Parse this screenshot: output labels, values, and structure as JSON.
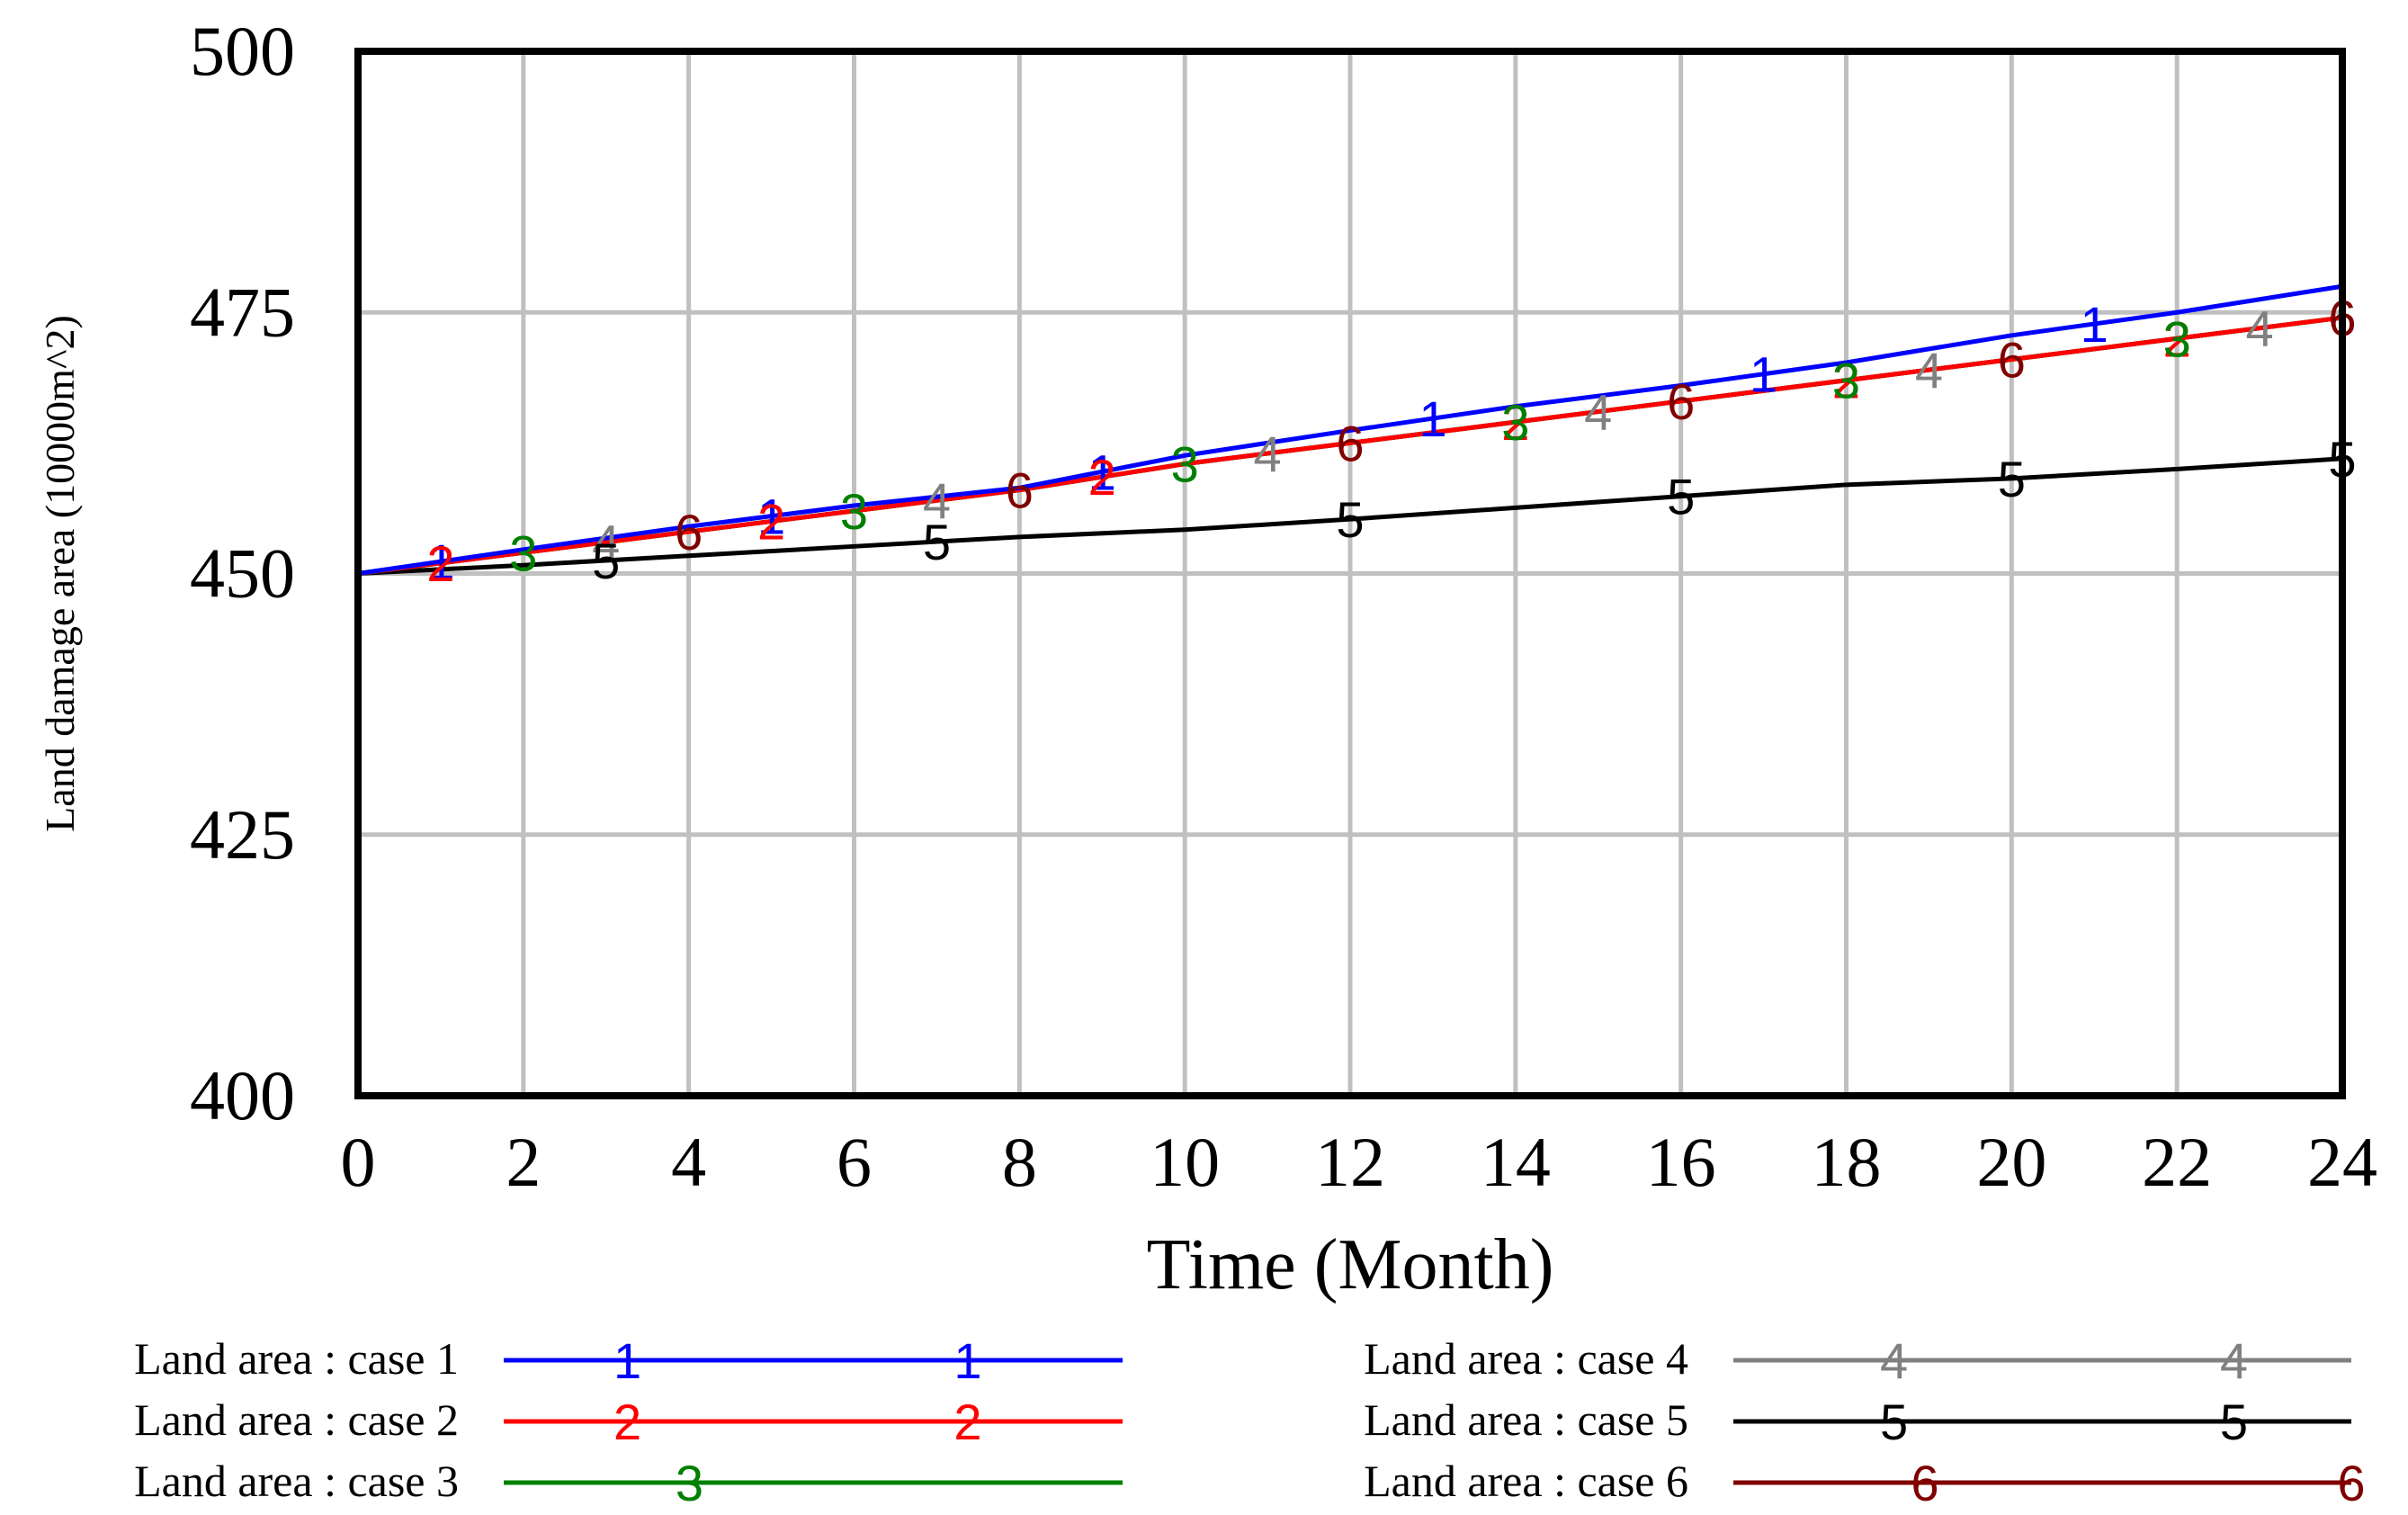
{
  "chart_data": {
    "type": "line",
    "title": "",
    "xlabel": "Time (Month)",
    "ylabel": "Land damage area (10000m^2)",
    "xlim": [
      0,
      24
    ],
    "ylim": [
      400,
      500
    ],
    "xticks": [
      0,
      2,
      4,
      6,
      8,
      10,
      12,
      14,
      16,
      18,
      20,
      22,
      24
    ],
    "yticks": [
      400,
      425,
      450,
      475,
      500
    ],
    "grid": true,
    "legend_position": "bottom",
    "series": [
      {
        "name": "Land area : case 1",
        "marker": "1",
        "color": "#0000ff",
        "x": [
          0,
          2,
          4,
          6,
          8,
          10,
          12,
          14,
          16,
          18,
          20,
          22,
          24
        ],
        "y": [
          450,
          452.3,
          454.5,
          456.5,
          458.2,
          461.3,
          463.7,
          466.0,
          468.0,
          470.2,
          472.8,
          475.0,
          477.5
        ],
        "marker_x": [
          1,
          5,
          9,
          13,
          17,
          21
        ]
      },
      {
        "name": "Land area : case 2",
        "marker": "2",
        "color": "#ff0000",
        "x": [
          0,
          2,
          4,
          6,
          8,
          10,
          12,
          14,
          16,
          18,
          20,
          22,
          24
        ],
        "y": [
          450,
          452.0,
          454.0,
          456.0,
          458.0,
          460.5,
          462.5,
          464.5,
          466.5,
          468.5,
          470.5,
          472.5,
          474.5
        ],
        "marker_x": [
          1,
          5,
          9,
          14,
          18,
          22
        ]
      },
      {
        "name": "Land area : case 3",
        "marker": "3",
        "color": "#008000",
        "x": [
          0,
          2,
          4,
          6,
          8,
          10,
          12,
          14,
          16,
          18,
          20,
          22,
          24
        ],
        "y": [
          450,
          452.0,
          454.0,
          456.0,
          458.0,
          460.5,
          462.5,
          464.5,
          466.5,
          468.5,
          470.5,
          472.5,
          474.5
        ],
        "marker_x": [
          2,
          6,
          10,
          14,
          18,
          22
        ]
      },
      {
        "name": "Land area : case 4",
        "marker": "4",
        "color": "#808080",
        "x": [
          0,
          2,
          4,
          6,
          8,
          10,
          12,
          14,
          16,
          18,
          20,
          22,
          24
        ],
        "y": [
          450,
          452.0,
          454.0,
          456.0,
          458.0,
          460.5,
          462.5,
          464.5,
          466.5,
          468.5,
          470.5,
          472.5,
          474.5
        ],
        "marker_x": [
          3,
          7,
          11,
          15,
          19,
          23
        ]
      },
      {
        "name": "Land area : case 5",
        "marker": "5",
        "color": "#000000",
        "x": [
          0,
          2,
          4,
          6,
          8,
          10,
          12,
          14,
          16,
          18,
          20,
          22,
          24
        ],
        "y": [
          450,
          450.8,
          451.7,
          452.6,
          453.5,
          454.2,
          455.2,
          456.3,
          457.4,
          458.5,
          459.1,
          460.0,
          461.0
        ],
        "marker_x": [
          3,
          7,
          12,
          16,
          20,
          24
        ]
      },
      {
        "name": "Land area : case 6",
        "marker": "6",
        "color": "#800000",
        "x": [
          0,
          2,
          4,
          6,
          8,
          10,
          12,
          14,
          16,
          18,
          20,
          22,
          24
        ],
        "y": [
          450,
          452.0,
          454.0,
          456.0,
          458.0,
          460.5,
          462.5,
          464.5,
          466.5,
          468.5,
          470.5,
          472.5,
          474.5
        ],
        "marker_x": [
          4,
          8,
          12,
          16,
          20,
          24
        ]
      }
    ]
  }
}
